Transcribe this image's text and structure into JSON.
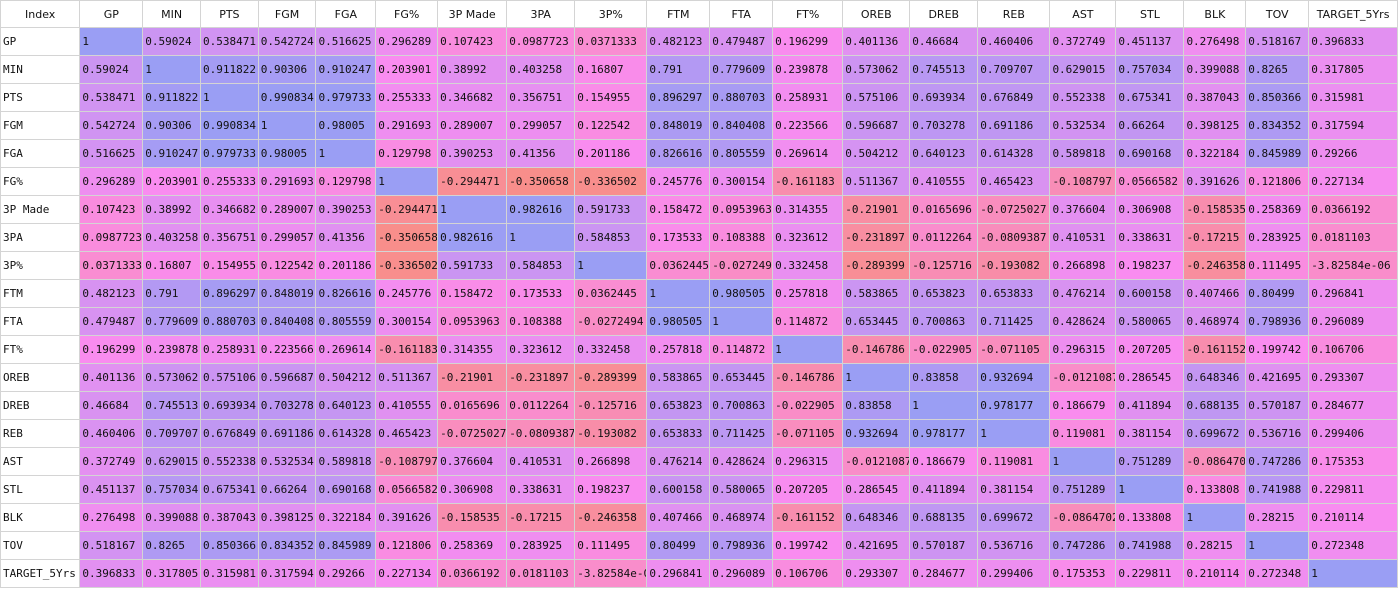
{
  "columns": [
    "Index",
    "GP",
    "MIN",
    "PTS",
    "FGM",
    "FGA",
    "FG%",
    "3P Made",
    "3PA",
    "3P%",
    "FTM",
    "FTA",
    "FT%",
    "OREB",
    "DREB",
    "REB",
    "AST",
    "STL",
    "BLK",
    "TOV",
    "TARGET_5Yrs"
  ],
  "rows": [
    {
      "label": "GP",
      "values": [
        "1",
        "0.59024",
        "0.538471",
        "0.542724",
        "0.516625",
        "0.296289",
        "0.107423",
        "0.0987723",
        "0.0371333",
        "0.482123",
        "0.479487",
        "0.196299",
        "0.401136",
        "0.46684",
        "0.460406",
        "0.372749",
        "0.451137",
        "0.276498",
        "0.518167",
        "0.396833"
      ]
    },
    {
      "label": "MIN",
      "values": [
        "0.59024",
        "1",
        "0.911822",
        "0.90306",
        "0.910247",
        "0.203901",
        "0.38992",
        "0.403258",
        "0.16807",
        "0.791",
        "0.779609",
        "0.239878",
        "0.573062",
        "0.745513",
        "0.709707",
        "0.629015",
        "0.757034",
        "0.399088",
        "0.8265",
        "0.317805"
      ]
    },
    {
      "label": "PTS",
      "values": [
        "0.538471",
        "0.911822",
        "1",
        "0.990834",
        "0.979733",
        "0.255333",
        "0.346682",
        "0.356751",
        "0.154955",
        "0.896297",
        "0.880703",
        "0.258931",
        "0.575106",
        "0.693934",
        "0.676849",
        "0.552338",
        "0.675341",
        "0.387043",
        "0.850366",
        "0.315981"
      ]
    },
    {
      "label": "FGM",
      "values": [
        "0.542724",
        "0.90306",
        "0.990834",
        "1",
        "0.98005",
        "0.291693",
        "0.289007",
        "0.299057",
        "0.122542",
        "0.848019",
        "0.840408",
        "0.223566",
        "0.596687",
        "0.703278",
        "0.691186",
        "0.532534",
        "0.66264",
        "0.398125",
        "0.834352",
        "0.317594"
      ]
    },
    {
      "label": "FGA",
      "values": [
        "0.516625",
        "0.910247",
        "0.979733",
        "0.98005",
        "1",
        "0.129798",
        "0.390253",
        "0.41356",
        "0.201186",
        "0.826616",
        "0.805559",
        "0.269614",
        "0.504212",
        "0.640123",
        "0.614328",
        "0.589818",
        "0.690168",
        "0.322184",
        "0.845989",
        "0.29266"
      ]
    },
    {
      "label": "FG%",
      "values": [
        "0.296289",
        "0.203901",
        "0.255333",
        "0.291693",
        "0.129798",
        "1",
        "-0.294471",
        "-0.350658",
        "-0.336502",
        "0.245776",
        "0.300154",
        "-0.161183",
        "0.511367",
        "0.410555",
        "0.465423",
        "-0.108797",
        "0.0566582",
        "0.391626",
        "0.121806",
        "0.227134"
      ]
    },
    {
      "label": "3P Made",
      "values": [
        "0.107423",
        "0.38992",
        "0.346682",
        "0.289007",
        "0.390253",
        "-0.294471",
        "1",
        "0.982616",
        "0.591733",
        "0.158472",
        "0.0953963",
        "0.314355",
        "-0.21901",
        "0.0165696",
        "-0.0725027",
        "0.376604",
        "0.306908",
        "-0.158535",
        "0.258369",
        "0.0366192"
      ]
    },
    {
      "label": "3PA",
      "values": [
        "0.0987723",
        "0.403258",
        "0.356751",
        "0.299057",
        "0.41356",
        "-0.350658",
        "0.982616",
        "1",
        "0.584853",
        "0.173533",
        "0.108388",
        "0.323612",
        "-0.231897",
        "0.0112264",
        "-0.0809387",
        "0.410531",
        "0.338631",
        "-0.17215",
        "0.283925",
        "0.0181103"
      ]
    },
    {
      "label": "3P%",
      "values": [
        "0.0371333",
        "0.16807",
        "0.154955",
        "0.122542",
        "0.201186",
        "-0.336502",
        "0.591733",
        "0.584853",
        "1",
        "0.0362445",
        "-0.0272494",
        "0.332458",
        "-0.289399",
        "-0.125716",
        "-0.193082",
        "0.266898",
        "0.198237",
        "-0.246358",
        "0.111495",
        "-3.82584e-06"
      ]
    },
    {
      "label": "FTM",
      "values": [
        "0.482123",
        "0.791",
        "0.896297",
        "0.848019",
        "0.826616",
        "0.245776",
        "0.158472",
        "0.173533",
        "0.0362445",
        "1",
        "0.980505",
        "0.257818",
        "0.583865",
        "0.653823",
        "0.653833",
        "0.476214",
        "0.600158",
        "0.407466",
        "0.80499",
        "0.296841"
      ]
    },
    {
      "label": "FTA",
      "values": [
        "0.479487",
        "0.779609",
        "0.880703",
        "0.840408",
        "0.805559",
        "0.300154",
        "0.0953963",
        "0.108388",
        "-0.0272494",
        "0.980505",
        "1",
        "0.114872",
        "0.653445",
        "0.700863",
        "0.711425",
        "0.428624",
        "0.580065",
        "0.468974",
        "0.798936",
        "0.296089"
      ]
    },
    {
      "label": "FT%",
      "values": [
        "0.196299",
        "0.239878",
        "0.258931",
        "0.223566",
        "0.269614",
        "-0.161183",
        "0.314355",
        "0.323612",
        "0.332458",
        "0.257818",
        "0.114872",
        "1",
        "-0.146786",
        "-0.022905",
        "-0.071105",
        "0.296315",
        "0.207205",
        "-0.161152",
        "0.199742",
        "0.106706"
      ]
    },
    {
      "label": "OREB",
      "values": [
        "0.401136",
        "0.573062",
        "0.575106",
        "0.596687",
        "0.504212",
        "0.511367",
        "-0.21901",
        "-0.231897",
        "-0.289399",
        "0.583865",
        "0.653445",
        "-0.146786",
        "1",
        "0.83858",
        "0.932694",
        "-0.0121087",
        "0.286545",
        "0.648346",
        "0.421695",
        "0.293307"
      ]
    },
    {
      "label": "DREB",
      "values": [
        "0.46684",
        "0.745513",
        "0.693934",
        "0.703278",
        "0.640123",
        "0.410555",
        "0.0165696",
        "0.0112264",
        "-0.125716",
        "0.653823",
        "0.700863",
        "-0.022905",
        "0.83858",
        "1",
        "0.978177",
        "0.186679",
        "0.411894",
        "0.688135",
        "0.570187",
        "0.284677"
      ]
    },
    {
      "label": "REB",
      "values": [
        "0.460406",
        "0.709707",
        "0.676849",
        "0.691186",
        "0.614328",
        "0.465423",
        "-0.0725027",
        "-0.0809387",
        "-0.193082",
        "0.653833",
        "0.711425",
        "-0.071105",
        "0.932694",
        "0.978177",
        "1",
        "0.119081",
        "0.381154",
        "0.699672",
        "0.536716",
        "0.299406"
      ]
    },
    {
      "label": "AST",
      "values": [
        "0.372749",
        "0.629015",
        "0.552338",
        "0.532534",
        "0.589818",
        "-0.108797",
        "0.376604",
        "0.410531",
        "0.266898",
        "0.476214",
        "0.428624",
        "0.296315",
        "-0.0121087",
        "0.186679",
        "0.119081",
        "1",
        "0.751289",
        "-0.0864702",
        "0.747286",
        "0.175353"
      ]
    },
    {
      "label": "STL",
      "values": [
        "0.451137",
        "0.757034",
        "0.675341",
        "0.66264",
        "0.690168",
        "0.0566582",
        "0.306908",
        "0.338631",
        "0.198237",
        "0.600158",
        "0.580065",
        "0.207205",
        "0.286545",
        "0.411894",
        "0.381154",
        "0.751289",
        "1",
        "0.133808",
        "0.741988",
        "0.229811"
      ]
    },
    {
      "label": "BLK",
      "values": [
        "0.276498",
        "0.399088",
        "0.387043",
        "0.398125",
        "0.322184",
        "0.391626",
        "-0.158535",
        "-0.17215",
        "-0.246358",
        "0.407466",
        "0.468974",
        "-0.161152",
        "0.648346",
        "0.688135",
        "0.699672",
        "-0.0864702",
        "0.133808",
        "1",
        "0.28215",
        "0.210114"
      ]
    },
    {
      "label": "TOV",
      "values": [
        "0.518167",
        "0.8265",
        "0.850366",
        "0.834352",
        "0.845989",
        "0.121806",
        "0.258369",
        "0.283925",
        "0.111495",
        "0.80499",
        "0.798936",
        "0.199742",
        "0.421695",
        "0.570187",
        "0.536716",
        "0.747286",
        "0.741988",
        "0.28215",
        "1",
        "0.272348"
      ]
    },
    {
      "label": "TARGET_5Yrs",
      "values": [
        "0.396833",
        "0.317805",
        "0.315981",
        "0.317594",
        "0.29266",
        "0.227134",
        "0.0366192",
        "0.0181103",
        "-3.82584e-06",
        "0.296841",
        "0.296089",
        "0.106706",
        "0.293307",
        "0.284677",
        "0.299406",
        "0.175353",
        "0.229811",
        "0.210114",
        "0.272348",
        "1"
      ]
    }
  ],
  "colors": {
    "low": "#f88e8b",
    "mid": "#f98cf0",
    "high": "#9a9ef4",
    "header_bg": "#ffffff",
    "border": "#d4d4d4"
  }
}
